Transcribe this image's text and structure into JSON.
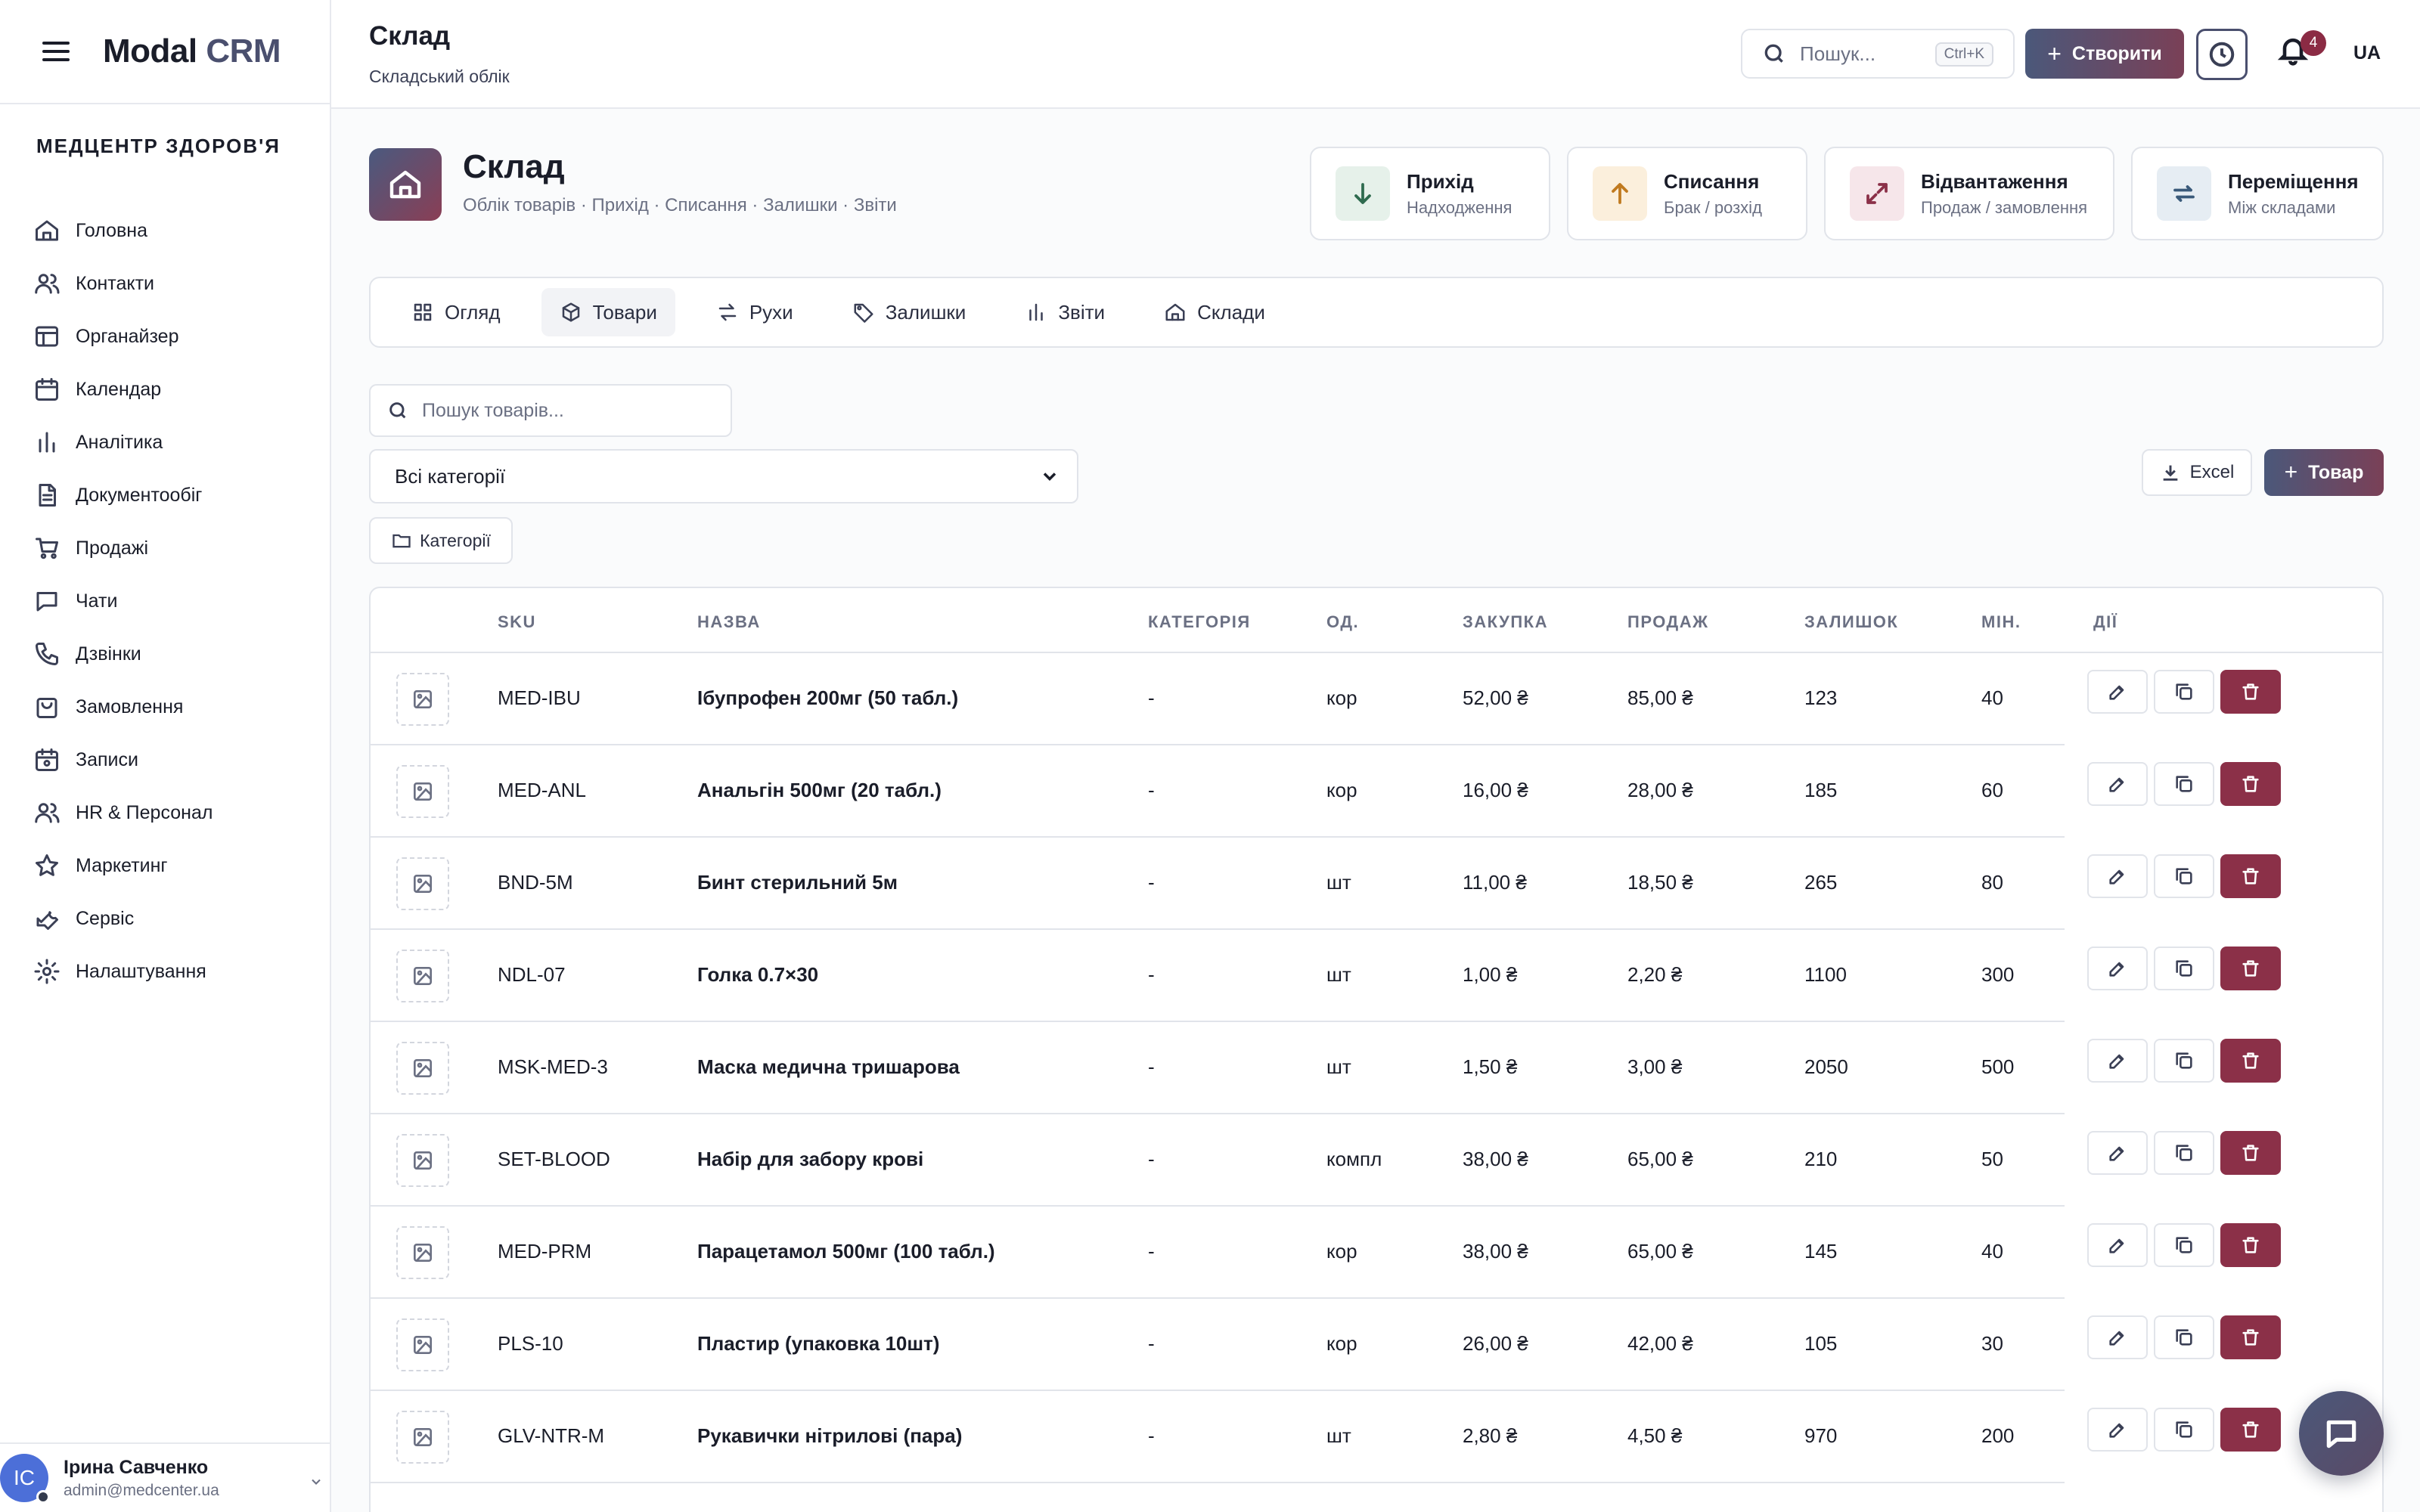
{
  "brand": {
    "logo_main": "Modal",
    "logo_accent": "CRM"
  },
  "sidebar": {
    "org": "МЕДЦЕНТР ЗДОРОВ'Я",
    "items": [
      {
        "label": "Головна",
        "icon": "home-icon"
      },
      {
        "label": "Контакти",
        "icon": "users-icon"
      },
      {
        "label": "Органайзер",
        "icon": "layout-icon"
      },
      {
        "label": "Календар",
        "icon": "calendar-icon"
      },
      {
        "label": "Аналітика",
        "icon": "bar-chart-icon"
      },
      {
        "label": "Документообіг",
        "icon": "document-icon"
      },
      {
        "label": "Продажі",
        "icon": "cart-icon"
      },
      {
        "label": "Чати",
        "icon": "chat-icon"
      },
      {
        "label": "Дзвінки",
        "icon": "phone-icon"
      },
      {
        "label": "Замовлення",
        "icon": "bag-icon"
      },
      {
        "label": "Записи",
        "icon": "calendar-check-icon"
      },
      {
        "label": "HR & Персонал",
        "icon": "people-icon"
      },
      {
        "label": "Маркетинг",
        "icon": "star-icon"
      },
      {
        "label": "Сервіс",
        "icon": "wrench-icon"
      },
      {
        "label": "Налаштування",
        "icon": "gear-icon"
      }
    ],
    "user": {
      "initials": "IC",
      "name": "Ірина Савченко",
      "email": "admin@medcenter.ua"
    }
  },
  "topbar": {
    "title": "Склад",
    "subtitle": "Складський облік",
    "search_placeholder": "Пошук...",
    "search_shortcut": "Ctrl+K",
    "create_label": "Створити",
    "notifications_count": "4",
    "lang": "UA"
  },
  "hero": {
    "title": "Склад",
    "subtitle": "Облік товарів · Прихід · Списання · Залишки · Звіти"
  },
  "quick_actions": [
    {
      "title": "Прихід",
      "sub": "Надходження",
      "icon": "arrow-down-icon",
      "color": "#2f6b4f",
      "bg": "#e6f1ea"
    },
    {
      "title": "Списання",
      "sub": "Брак / розхід",
      "icon": "arrow-up-icon",
      "color": "#c07a1f",
      "bg": "#fbefdc"
    },
    {
      "title": "Відвантаження",
      "sub": "Продаж / замовлення",
      "icon": "expand-icon",
      "color": "#8b3048",
      "bg": "#f6e6ea"
    },
    {
      "title": "Переміщення",
      "sub": "Між складами",
      "icon": "swap-icon",
      "color": "#3a5a7a",
      "bg": "#e6edf3"
    }
  ],
  "tabs": [
    {
      "label": "Огляд",
      "icon": "grid-icon"
    },
    {
      "label": "Товари",
      "icon": "box-icon",
      "active": true
    },
    {
      "label": "Рухи",
      "icon": "arrows-icon"
    },
    {
      "label": "Залишки",
      "icon": "tag-icon"
    },
    {
      "label": "Звіти",
      "icon": "bar-chart-icon"
    },
    {
      "label": "Склади",
      "icon": "warehouse-icon"
    }
  ],
  "products": {
    "search_placeholder": "Пошук товарів...",
    "category_select": "Всі категорії",
    "excel_label": "Excel",
    "add_label": "Товар",
    "categories_label": "Категорії",
    "columns": [
      "SKU",
      "НАЗВА",
      "КАТЕГОРІЯ",
      "ОД.",
      "ЗАКУПКА",
      "ПРОДАЖ",
      "ЗАЛИШОК",
      "МІН.",
      "ДІЇ"
    ],
    "rows": [
      {
        "sku": "MED-IBU",
        "name": "Ібупрофен 200мг (50 табл.)",
        "category": "-",
        "unit": "кор",
        "buy": "52,00 ₴",
        "sell": "85,00 ₴",
        "stock": "123",
        "min": "40"
      },
      {
        "sku": "MED-ANL",
        "name": "Анальгін 500мг (20 табл.)",
        "category": "-",
        "unit": "кор",
        "buy": "16,00 ₴",
        "sell": "28,00 ₴",
        "stock": "185",
        "min": "60"
      },
      {
        "sku": "BND-5M",
        "name": "Бинт стерильний 5м",
        "category": "-",
        "unit": "шт",
        "buy": "11,00 ₴",
        "sell": "18,50 ₴",
        "stock": "265",
        "min": "80"
      },
      {
        "sku": "NDL-07",
        "name": "Голка 0.7×30",
        "category": "-",
        "unit": "шт",
        "buy": "1,00 ₴",
        "sell": "2,20 ₴",
        "stock": "1100",
        "min": "300"
      },
      {
        "sku": "MSK-MED-3",
        "name": "Маска медична тришарова",
        "category": "-",
        "unit": "шт",
        "buy": "1,50 ₴",
        "sell": "3,00 ₴",
        "stock": "2050",
        "min": "500"
      },
      {
        "sku": "SET-BLOOD",
        "name": "Набір для забору крові",
        "category": "-",
        "unit": "компл",
        "buy": "38,00 ₴",
        "sell": "65,00 ₴",
        "stock": "210",
        "min": "50"
      },
      {
        "sku": "MED-PRM",
        "name": "Парацетамол 500мг (100 табл.)",
        "category": "-",
        "unit": "кор",
        "buy": "38,00 ₴",
        "sell": "65,00 ₴",
        "stock": "145",
        "min": "40"
      },
      {
        "sku": "PLS-10",
        "name": "Пластир (упаковка 10шт)",
        "category": "-",
        "unit": "кор",
        "buy": "26,00 ₴",
        "sell": "42,00 ₴",
        "stock": "105",
        "min": "30"
      },
      {
        "sku": "GLV-NTR-M",
        "name": "Рукавички нітрилові (пара)",
        "category": "-",
        "unit": "шт",
        "buy": "2,80 ₴",
        "sell": "4,50 ₴",
        "stock": "970",
        "min": "200"
      }
    ]
  },
  "colors": {
    "brand_gradient_start": "#4b587a",
    "brand_gradient_end": "#7a4057",
    "danger": "#8b3048"
  }
}
